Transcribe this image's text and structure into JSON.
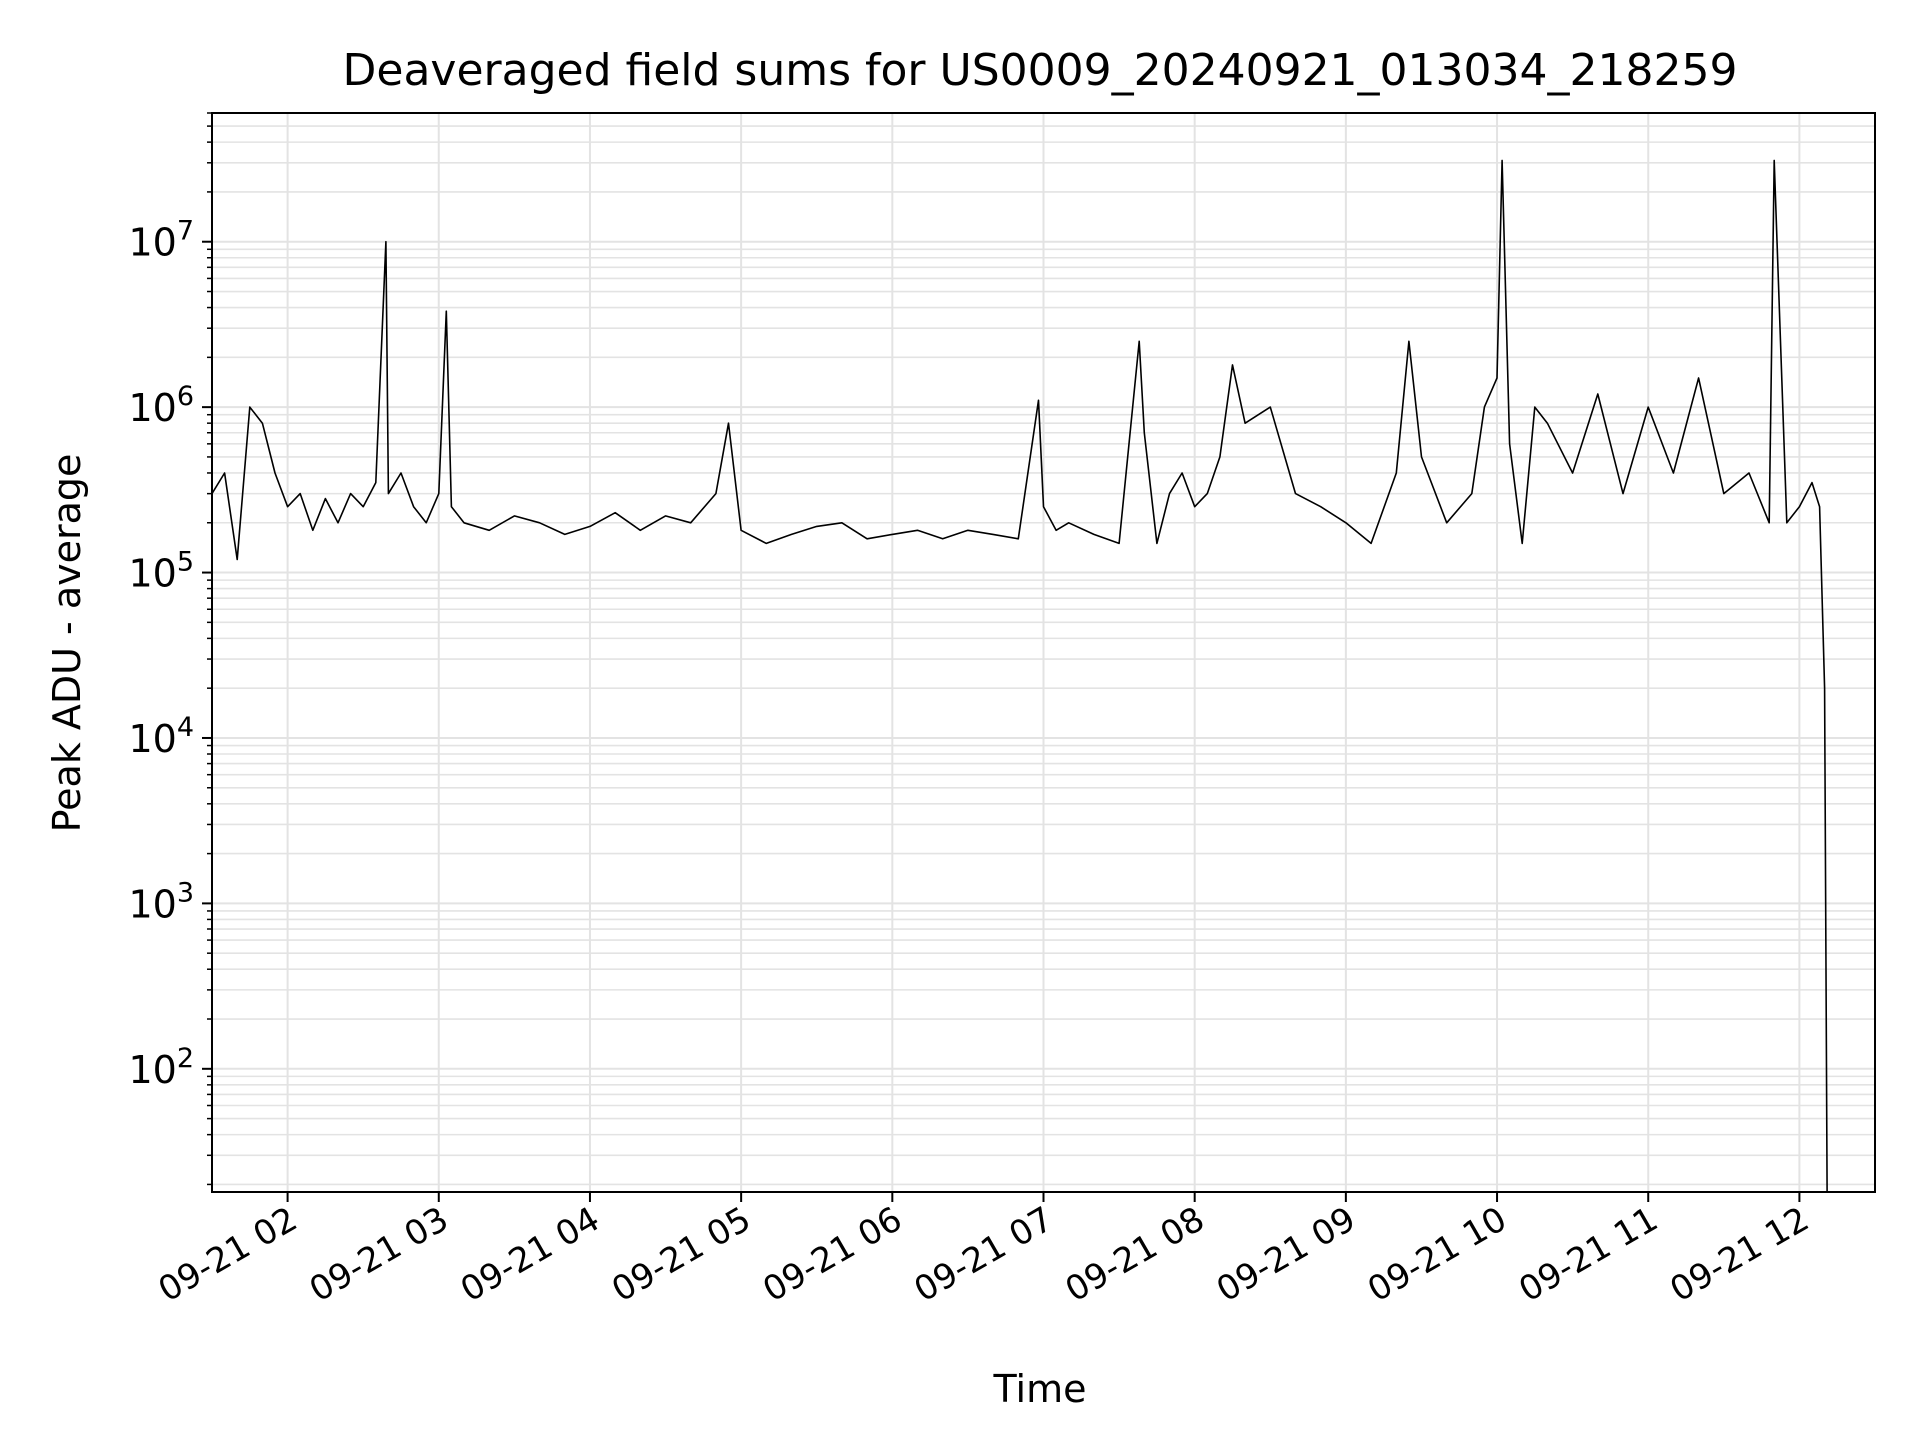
{
  "chart_data": {
    "type": "line",
    "title": "Deaveraged field sums for US0009_20240921_013034_218259",
    "xlabel": "Time",
    "ylabel": "Peak ADU - average",
    "yscale": "log",
    "ylim": [
      18,
      60000000
    ],
    "xlim": [
      "2024-09-21 01:30",
      "2024-09-21 12:30"
    ],
    "grid": true,
    "line_color": "#000000",
    "x_tick_labels": [
      "09-21 02",
      "09-21 03",
      "09-21 04",
      "09-21 05",
      "09-21 06",
      "09-21 07",
      "09-21 08",
      "09-21 09",
      "09-21 10",
      "09-21 11",
      "09-21 12"
    ],
    "y_tick_labels": [
      "10^2",
      "10^3",
      "10^4",
      "10^5",
      "10^6",
      "10^7"
    ],
    "series": [
      {
        "x": [
          "01:30",
          "01:35",
          "01:40",
          "01:45",
          "01:50",
          "01:55",
          "02:00",
          "02:05",
          "02:10",
          "02:15",
          "02:20",
          "02:25",
          "02:30",
          "02:35",
          "02:39",
          "02:40",
          "02:45",
          "02:50",
          "02:55",
          "03:00",
          "03:03",
          "03:05",
          "03:10",
          "03:20",
          "03:30",
          "03:40",
          "03:50",
          "04:00",
          "04:10",
          "04:20",
          "04:30",
          "04:40",
          "04:50",
          "04:55",
          "05:00",
          "05:10",
          "05:20",
          "05:30",
          "05:40",
          "05:50",
          "06:00",
          "06:10",
          "06:20",
          "06:30",
          "06:40",
          "06:50",
          "06:58",
          "07:00",
          "07:05",
          "07:10",
          "07:20",
          "07:30",
          "07:38",
          "07:40",
          "07:45",
          "07:50",
          "07:55",
          "08:00",
          "08:05",
          "08:10",
          "08:15",
          "08:20",
          "08:30",
          "08:40",
          "08:50",
          "09:00",
          "09:10",
          "09:20",
          "09:25",
          "09:30",
          "09:40",
          "09:50",
          "09:55",
          "10:00",
          "10:02",
          "10:05",
          "10:10",
          "10:15",
          "10:20",
          "10:30",
          "10:40",
          "10:45",
          "10:50",
          "11:00",
          "11:10",
          "11:20",
          "11:30",
          "11:40",
          "11:48",
          "11:50",
          "11:55",
          "12:00",
          "12:05",
          "12:08",
          "12:10",
          "12:11"
        ],
        "y": [
          300000,
          400000,
          120000,
          1000000,
          800000,
          400000,
          250000,
          300000,
          180000,
          280000,
          200000,
          300000,
          250000,
          350000,
          10000000,
          300000,
          400000,
          250000,
          200000,
          300000,
          3800000,
          250000,
          200000,
          180000,
          220000,
          200000,
          170000,
          190000,
          230000,
          180000,
          220000,
          200000,
          300000,
          800000,
          180000,
          150000,
          170000,
          190000,
          200000,
          160000,
          170000,
          180000,
          160000,
          180000,
          170000,
          160000,
          1100000,
          250000,
          180000,
          200000,
          170000,
          150000,
          2500000,
          700000,
          150000,
          300000,
          400000,
          250000,
          300000,
          500000,
          1800000,
          800000,
          1000000,
          300000,
          250000,
          200000,
          150000,
          400000,
          2500000,
          500000,
          200000,
          300000,
          1000000,
          1500000,
          31000000,
          600000,
          150000,
          1000000,
          800000,
          400000,
          1200000,
          600000,
          300000,
          1000000,
          400000,
          1500000,
          300000,
          400000,
          200000,
          31000000,
          200000,
          250000,
          350000,
          250000,
          20000,
          18
        ]
      }
    ]
  }
}
